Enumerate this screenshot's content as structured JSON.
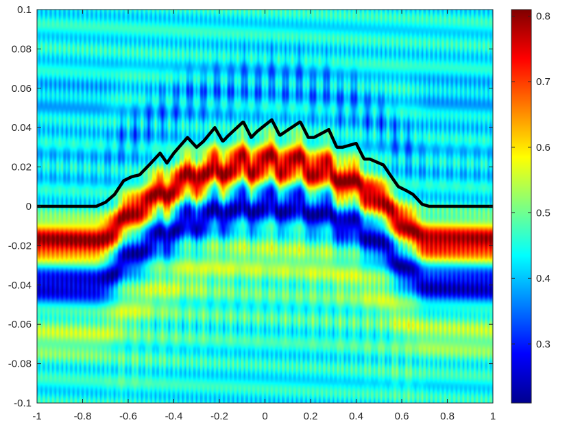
{
  "chart_data": {
    "type": "heatmap",
    "title": "",
    "xlabel": "",
    "ylabel": "",
    "xlim": [
      -1,
      1
    ],
    "ylim": [
      -0.1,
      0.1
    ],
    "x_ticks": [
      "-1",
      "-0.8",
      "-0.6",
      "-0.4",
      "-0.2",
      "0",
      "0.2",
      "0.4",
      "0.6",
      "0.8",
      "1"
    ],
    "y_ticks": [
      "-0.1",
      "-0.08",
      "-0.06",
      "-0.04",
      "-0.02",
      "0",
      "0.02",
      "0.04",
      "0.06",
      "0.08",
      "0.1"
    ],
    "colormap": "jet",
    "colorbar": {
      "range": [
        0.21,
        0.81
      ],
      "ticks": [
        "0.3",
        "0.4",
        "0.5",
        "0.6",
        "0.7",
        "0.8"
      ]
    },
    "field": {
      "background": 0.44,
      "red_band_peak": 0.79,
      "blue_band_min": 0.24,
      "stripe_period_x": 0.02,
      "lobe_period_x": 0.12
    },
    "boundary_curve": {
      "color": "#000000",
      "points": [
        [
          -1.0,
          0.0
        ],
        [
          -0.74,
          0.0
        ],
        [
          -0.7,
          0.002
        ],
        [
          -0.66,
          0.006
        ],
        [
          -0.62,
          0.013
        ],
        [
          -0.585,
          0.015
        ],
        [
          -0.55,
          0.016
        ],
        [
          -0.5,
          0.022
        ],
        [
          -0.46,
          0.027
        ],
        [
          -0.43,
          0.022
        ],
        [
          -0.4,
          0.027
        ],
        [
          -0.34,
          0.035
        ],
        [
          -0.3,
          0.03
        ],
        [
          -0.27,
          0.033
        ],
        [
          -0.22,
          0.04
        ],
        [
          -0.185,
          0.033
        ],
        [
          -0.16,
          0.036
        ],
        [
          -0.095,
          0.043
        ],
        [
          -0.06,
          0.035
        ],
        [
          -0.035,
          0.038
        ],
        [
          0.03,
          0.044
        ],
        [
          0.065,
          0.036
        ],
        [
          0.09,
          0.038
        ],
        [
          0.155,
          0.043
        ],
        [
          0.19,
          0.035
        ],
        [
          0.215,
          0.035
        ],
        [
          0.28,
          0.039
        ],
        [
          0.315,
          0.03
        ],
        [
          0.34,
          0.03
        ],
        [
          0.4,
          0.032
        ],
        [
          0.435,
          0.024
        ],
        [
          0.46,
          0.024
        ],
        [
          0.52,
          0.021
        ],
        [
          0.555,
          0.015
        ],
        [
          0.585,
          0.01
        ],
        [
          0.62,
          0.008
        ],
        [
          0.65,
          0.006
        ],
        [
          0.69,
          0.001
        ],
        [
          0.72,
          0.0
        ],
        [
          1.0,
          0.0
        ]
      ]
    }
  }
}
